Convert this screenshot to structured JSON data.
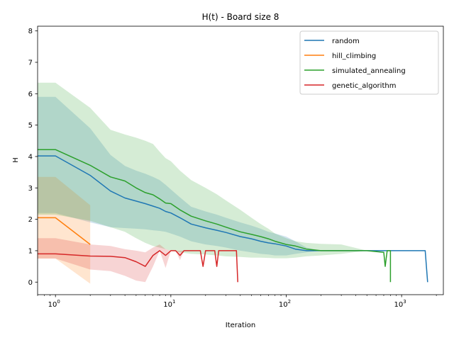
{
  "chart_data": {
    "type": "line",
    "title": "H(t) - Board size 8",
    "xlabel": "Iteration",
    "ylabel": "H",
    "xscale": "log",
    "xlim": [
      0.7,
      2300
    ],
    "ylim": [
      -0.4,
      8.15
    ],
    "x_ticks": [
      {
        "value": 1,
        "base": "10",
        "exp": "0"
      },
      {
        "value": 10,
        "base": "10",
        "exp": "1"
      },
      {
        "value": 100,
        "base": "10",
        "exp": "2"
      },
      {
        "value": 1000,
        "base": "10",
        "exp": "3"
      }
    ],
    "y_ticks": [
      0,
      1,
      2,
      3,
      4,
      5,
      6,
      7,
      8
    ],
    "grid": false,
    "legend_position": "top-right",
    "series": [
      {
        "name": "random",
        "color": "#1f77b4",
        "x": [
          0.7,
          1,
          2,
          3,
          4,
          5,
          6,
          7,
          8,
          9,
          10,
          12,
          15,
          20,
          25,
          30,
          40,
          50,
          60,
          70,
          80,
          100,
          120,
          150,
          200,
          300,
          500,
          700,
          1000,
          1300,
          1600,
          1680
        ],
        "y": [
          4.02,
          4.02,
          3.4,
          2.9,
          2.68,
          2.58,
          2.5,
          2.42,
          2.35,
          2.25,
          2.2,
          2.05,
          1.85,
          1.73,
          1.65,
          1.58,
          1.45,
          1.38,
          1.3,
          1.25,
          1.22,
          1.15,
          1.05,
          1.0,
          1.0,
          1.0,
          1.0,
          1.0,
          1.0,
          1.0,
          1.0,
          0.0
        ],
        "band_lower": [
          2.2,
          2.2,
          1.9,
          1.75,
          1.72,
          1.7,
          1.68,
          1.65,
          1.63,
          1.6,
          1.55,
          1.45,
          1.3,
          1.2,
          1.15,
          1.1,
          1.0,
          0.95,
          0.9,
          0.88,
          0.85,
          0.85,
          0.9,
          0.95,
          1.0,
          1.0,
          1.0,
          1.0,
          1.0,
          1.0,
          1.0,
          1.0
        ],
        "band_upper": [
          5.9,
          5.9,
          4.9,
          4.05,
          3.7,
          3.55,
          3.45,
          3.35,
          3.25,
          3.1,
          2.95,
          2.7,
          2.4,
          2.25,
          2.15,
          2.05,
          1.9,
          1.8,
          1.7,
          1.6,
          1.55,
          1.45,
          1.3,
          1.1,
          1.0,
          1.0,
          1.0,
          1.0,
          1.0,
          1.0,
          1.0,
          1.0
        ]
      },
      {
        "name": "hill_climbing",
        "color": "#ff7f0e",
        "x": [
          0.7,
          1,
          2
        ],
        "y": [
          2.05,
          2.05,
          1.2
        ],
        "band_lower": [
          0.75,
          0.75,
          -0.05
        ],
        "band_upper": [
          3.35,
          3.35,
          2.45
        ]
      },
      {
        "name": "simulated_annealing",
        "color": "#2ca02c",
        "x": [
          0.7,
          1,
          2,
          3,
          4,
          5,
          6,
          7,
          8,
          9,
          10,
          12,
          15,
          20,
          25,
          30,
          40,
          50,
          60,
          70,
          80,
          100,
          120,
          150,
          200,
          300,
          500,
          700,
          720,
          750,
          800,
          800
        ],
        "y": [
          4.22,
          4.22,
          3.72,
          3.35,
          3.22,
          3.0,
          2.85,
          2.78,
          2.65,
          2.52,
          2.5,
          2.3,
          2.1,
          1.95,
          1.85,
          1.75,
          1.6,
          1.52,
          1.45,
          1.38,
          1.3,
          1.2,
          1.15,
          1.05,
          1.0,
          1.0,
          1.0,
          0.95,
          0.5,
          1.0,
          1.0,
          0.0
        ],
        "band_lower": [
          2.15,
          2.15,
          1.95,
          1.75,
          1.6,
          1.4,
          1.25,
          1.15,
          1.1,
          1.05,
          1.0,
          0.95,
          0.9,
          0.88,
          0.85,
          0.82,
          0.8,
          0.78,
          0.78,
          0.77,
          0.76,
          0.76,
          0.78,
          0.82,
          0.85,
          0.9,
          1.0,
          1.0,
          1.0,
          1.0,
          1.0,
          1.0
        ],
        "band_upper": [
          6.35,
          6.35,
          5.55,
          4.85,
          4.7,
          4.6,
          4.5,
          4.4,
          4.15,
          3.95,
          3.85,
          3.55,
          3.25,
          3.0,
          2.8,
          2.6,
          2.3,
          2.05,
          1.85,
          1.7,
          1.55,
          1.4,
          1.3,
          1.25,
          1.22,
          1.2,
          1.0,
          1.0,
          1.0,
          1.0,
          1.0,
          1.0
        ]
      },
      {
        "name": "genetic_algorithm",
        "color": "#d62728",
        "x": [
          0.7,
          1,
          2,
          3,
          4,
          5,
          6,
          7,
          8,
          9,
          10,
          11,
          12,
          13,
          15,
          18,
          19,
          20,
          22,
          24,
          25,
          26,
          30,
          35,
          37,
          38
        ],
        "y": [
          0.9,
          0.9,
          0.83,
          0.82,
          0.78,
          0.65,
          0.5,
          0.85,
          1.0,
          0.85,
          1.0,
          1.0,
          0.85,
          1.0,
          1.0,
          1.0,
          0.5,
          1.0,
          1.0,
          1.0,
          0.5,
          1.0,
          1.0,
          1.0,
          1.0,
          0.0
        ],
        "band_lower": [
          0.75,
          0.75,
          0.4,
          0.35,
          0.2,
          0.05,
          0.0,
          0.5,
          1.0,
          0.45,
          1.0,
          1.0,
          0.7,
          1.0,
          1.0,
          1.0,
          0.5,
          1.0,
          1.0,
          1.0,
          0.5,
          1.0,
          1.0,
          1.0,
          1.0,
          0.0
        ],
        "band_upper": [
          1.4,
          1.4,
          1.2,
          1.15,
          1.05,
          1.0,
          0.95,
          1.1,
          1.2,
          1.05,
          1.0,
          1.0,
          1.0,
          1.0,
          1.0,
          1.0,
          0.5,
          1.0,
          1.0,
          1.0,
          0.5,
          1.0,
          1.0,
          1.0,
          1.0,
          0.0
        ]
      }
    ]
  }
}
